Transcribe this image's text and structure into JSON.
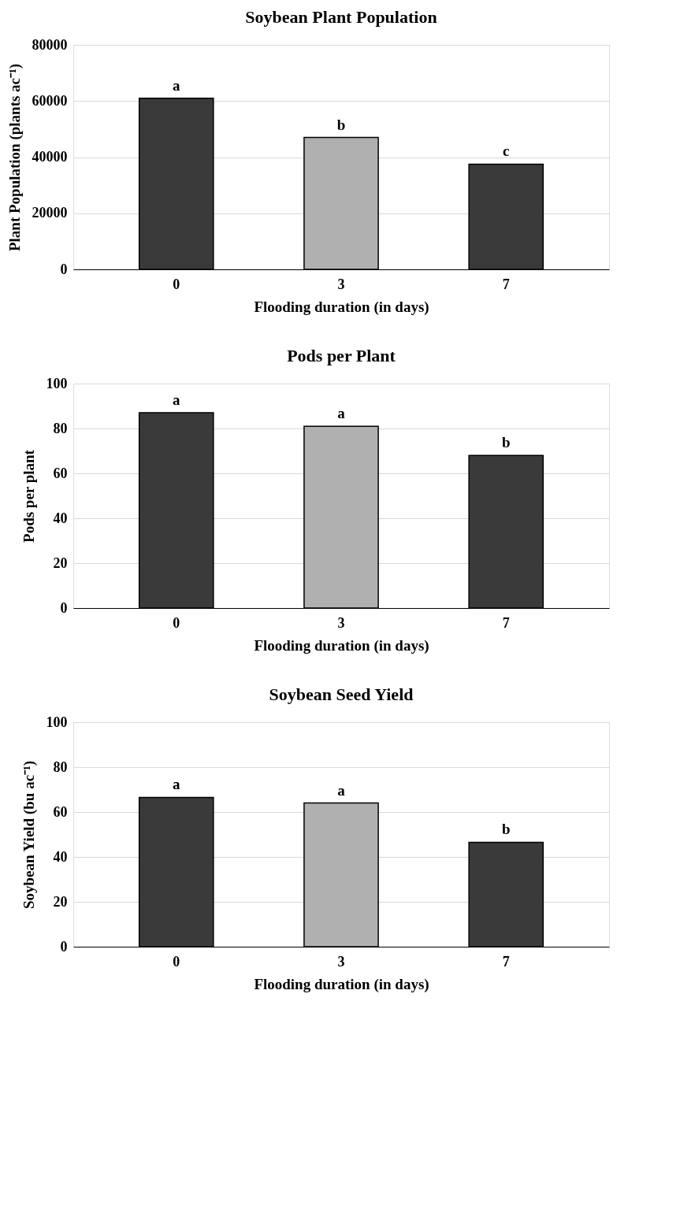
{
  "chart_data": [
    {
      "type": "bar",
      "title": "Soybean Plant Population",
      "xlabel": "Flooding duration (in days)",
      "ylabel": "Plant Population (plants ac⁻¹)",
      "categories": [
        "0",
        "3",
        "7"
      ],
      "values": [
        61000,
        47000,
        37500
      ],
      "colors": [
        "#3a3a3a",
        "#b0b0b0",
        "#3a3a3a"
      ],
      "ylim": [
        0,
        80000
      ],
      "yticks": [
        0,
        20000,
        40000,
        60000,
        80000
      ],
      "grid": "y",
      "legend": false,
      "annotations": [
        {
          "text": "a",
          "x": "0",
          "y": 61000
        },
        {
          "text": "b",
          "x": "3",
          "y": 47000
        },
        {
          "text": "c",
          "x": "7",
          "y": 37500
        }
      ]
    },
    {
      "type": "bar",
      "title": "Pods per Plant",
      "xlabel": "Flooding duration (in days)",
      "ylabel": "Pods per plant",
      "categories": [
        "0",
        "3",
        "7"
      ],
      "values": [
        87,
        81,
        68
      ],
      "colors": [
        "#3a3a3a",
        "#b0b0b0",
        "#3a3a3a"
      ],
      "ylim": [
        0,
        100
      ],
      "yticks": [
        0,
        20,
        40,
        60,
        80,
        100
      ],
      "grid": "y",
      "legend": false,
      "annotations": [
        {
          "text": "a",
          "x": "0",
          "y": 87
        },
        {
          "text": "a",
          "x": "3",
          "y": 81
        },
        {
          "text": "b",
          "x": "7",
          "y": 68
        }
      ]
    },
    {
      "type": "bar",
      "title": "Soybean Seed Yield",
      "xlabel": "Flooding duration (in days)",
      "ylabel": "Soybean Yield (bu ac⁻¹)",
      "categories": [
        "0",
        "3",
        "7"
      ],
      "values": [
        66.5,
        64,
        46.5
      ],
      "colors": [
        "#3a3a3a",
        "#b0b0b0",
        "#3a3a3a"
      ],
      "ylim": [
        0,
        100
      ],
      "yticks": [
        0,
        20,
        40,
        60,
        80,
        100
      ],
      "grid": "y",
      "legend": false,
      "annotations": [
        {
          "text": "a",
          "x": "0",
          "y": 66.5
        },
        {
          "text": "a",
          "x": "3",
          "y": 64
        },
        {
          "text": "b",
          "x": "7",
          "y": 46.5
        }
      ]
    }
  ]
}
